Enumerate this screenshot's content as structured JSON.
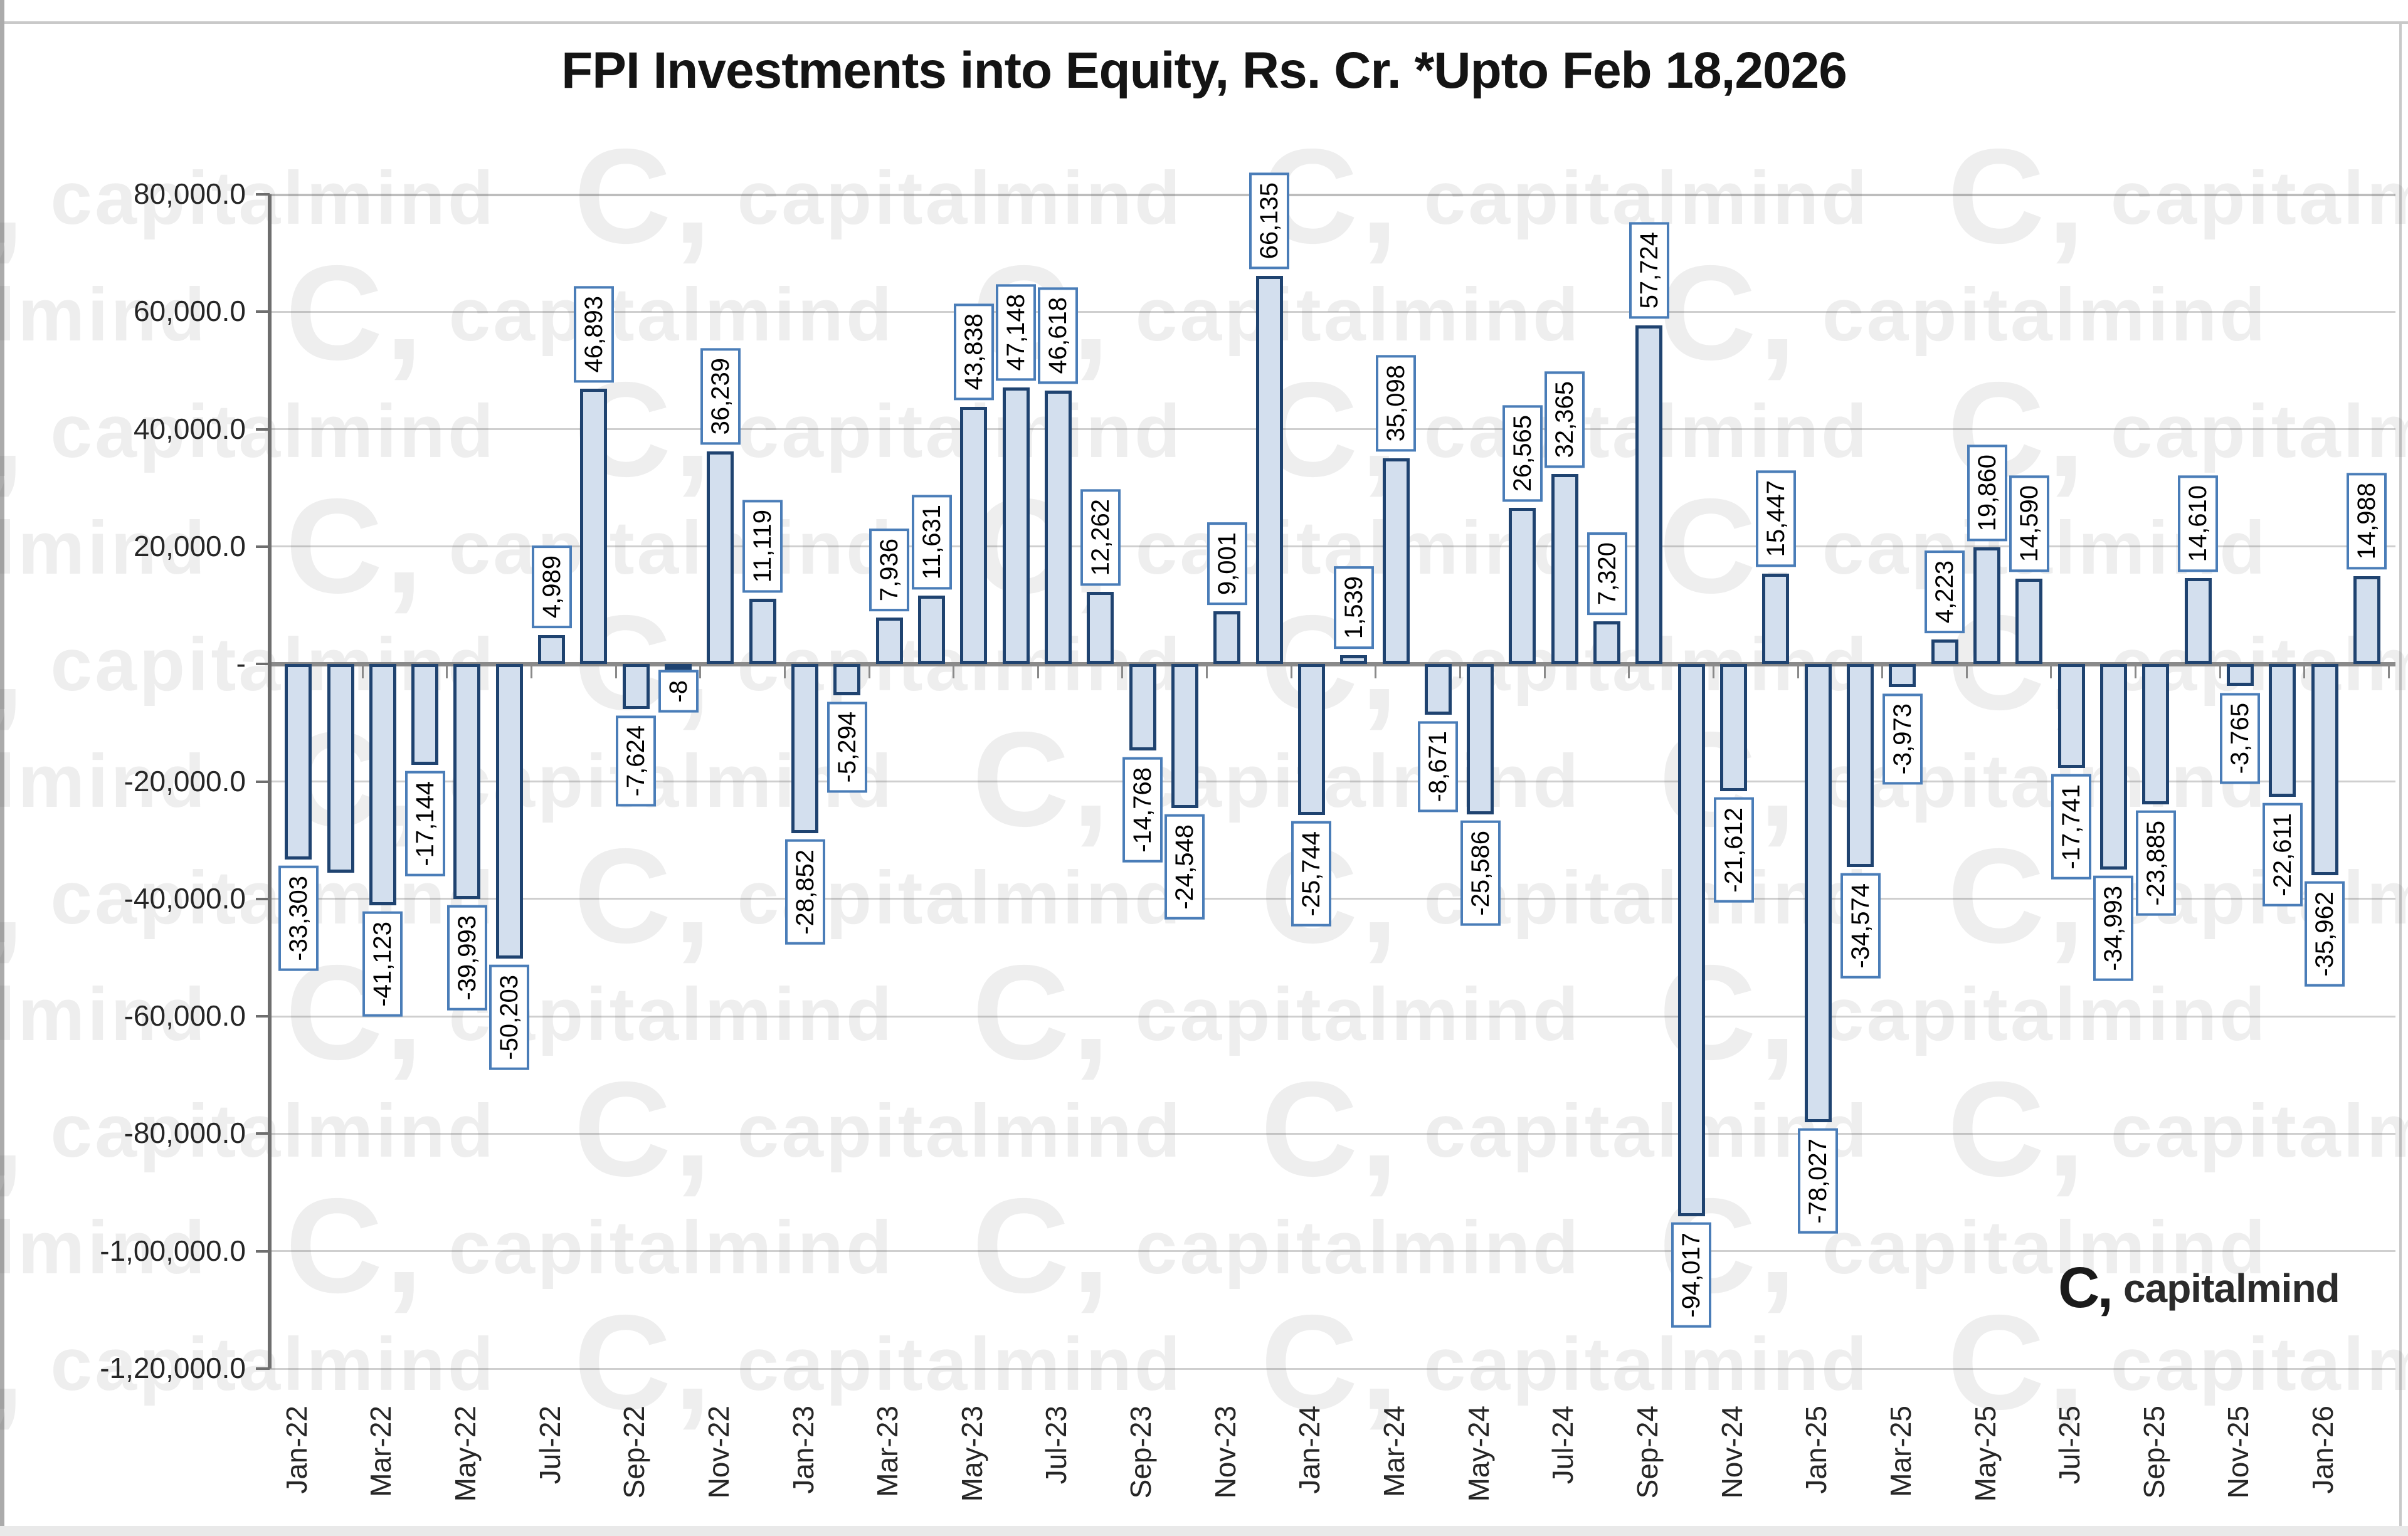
{
  "title": "FPI Investments into Equity, Rs. Cr. *Upto Feb 18,2026",
  "watermark": {
    "logo": "C,",
    "text": "capitalmind"
  },
  "brand": {
    "logo": "C,",
    "name": "capitalmind"
  },
  "chart_data": {
    "type": "bar",
    "title": "FPI Investments into Equity, Rs. Cr. *Upto Feb 18,2026",
    "xlabel": "",
    "ylabel": "",
    "ylim": [
      -120000,
      80000
    ],
    "grid_step": 20000,
    "grid": "on",
    "legend": "none",
    "y_tick_labels": [
      "80,000.0",
      "60,000.0",
      "40,000.0",
      "20,000.0",
      "-",
      "-20,000.0",
      "-40,000.0",
      "-60,000.0",
      "-80,000.0",
      "-1,00,000.0",
      "-1,20,000.0"
    ],
    "x_tick_labels": [
      "Jan-22",
      "Mar-22",
      "May-22",
      "Jul-22",
      "Sep-22",
      "Nov-22",
      "Jan-23",
      "Mar-23",
      "May-23",
      "Jul-23",
      "Sep-23",
      "Nov-23",
      "Jan-24",
      "Mar-24",
      "May-24",
      "Jul-24",
      "Sep-24",
      "Nov-24",
      "Jan-25",
      "Mar-25",
      "May-25",
      "Jul-25",
      "Sep-25",
      "Nov-25",
      "Jan-26"
    ],
    "categories": [
      "Jan-22",
      "Feb-22",
      "Mar-22",
      "Apr-22",
      "May-22",
      "Jun-22",
      "Jul-22",
      "Aug-22",
      "Sep-22",
      "Oct-22",
      "Nov-22",
      "Dec-22",
      "Jan-23",
      "Feb-23",
      "Mar-23",
      "Apr-23",
      "May-23",
      "Jun-23",
      "Jul-23",
      "Aug-23",
      "Sep-23",
      "Oct-23",
      "Nov-23",
      "Dec-23",
      "Jan-24",
      "Feb-24",
      "Mar-24",
      "Apr-24",
      "May-24",
      "Jun-24",
      "Jul-24",
      "Aug-24",
      "Sep-24",
      "Oct-24",
      "Nov-24",
      "Dec-24",
      "Jan-25",
      "Feb-25",
      "Mar-25",
      "Apr-25",
      "May-25",
      "Jun-25",
      "Jul-25",
      "Aug-25",
      "Sep-25",
      "Oct-25",
      "Nov-25",
      "Dec-25",
      "Jan-26",
      "Feb-26"
    ],
    "values": [
      -33303,
      -35592,
      -41123,
      -17144,
      -39993,
      -50203,
      4989,
      46893,
      -7624,
      -8,
      36239,
      11119,
      -28852,
      -5294,
      7936,
      11631,
      43838,
      47148,
      46618,
      12262,
      -14768,
      -24548,
      9001,
      66135,
      -25744,
      1539,
      35098,
      -8671,
      -25586,
      26565,
      32365,
      7320,
      57724,
      -94017,
      -21612,
      15447,
      -78027,
      -34574,
      -3973,
      4223,
      19860,
      14590,
      -17741,
      -34993,
      -23885,
      14610,
      -3765,
      -22611,
      -35962,
      14988
    ],
    "data_labels": [
      "-33,303",
      null,
      "-41,123",
      "-17,144",
      "-39,993",
      "-50,203",
      "4,989",
      "46,893",
      "-7,624",
      "-8",
      "36,239",
      "11,119",
      "-28,852",
      "-5,294",
      "7,936",
      "11,631",
      "43,838",
      "47,148",
      "46,618",
      "12,262",
      "-14,768",
      "-24,548",
      "9,001",
      "66,135",
      "-25,744",
      "1,539",
      "35,098",
      "-8,671",
      "-25,586",
      "26,565",
      "32,365",
      "7,320",
      "57,724",
      "-94,017",
      "-21,612",
      "15,447",
      "-78,027",
      "-34,574",
      "-3,973",
      "4,223",
      "19,860",
      "14,590",
      "-17,741",
      "-34,993",
      "-23,885",
      "14,610",
      "-3,765",
      "-22,611",
      "-35,962",
      "14,988"
    ],
    "colors": {
      "bar_fill": "#d3dfee",
      "bar_border": "#1f4370",
      "label_box_border": "#4a7db8",
      "gridline": "#cfcfcf",
      "axis_line": "#6e6e6e",
      "zero_line": "#8a8a8a"
    }
  }
}
